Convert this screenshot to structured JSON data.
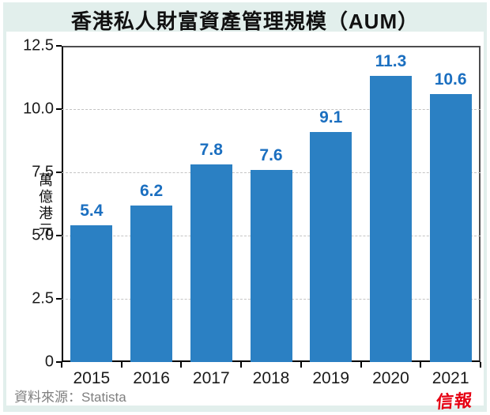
{
  "page": {
    "title": "香港私人財富資產管理規模（AUM）",
    "source_label": "資料來源：Statista",
    "logo_text": "信報",
    "background_color": "#e2efec",
    "card_color": "#ffffff"
  },
  "chart_data": {
    "type": "bar",
    "title": "香港私人財富資產管理規模（AUM）",
    "categories": [
      "2015",
      "2016",
      "2017",
      "2018",
      "2019",
      "2020",
      "2021"
    ],
    "values": [
      5.4,
      6.2,
      7.8,
      7.6,
      9.1,
      11.3,
      10.6
    ],
    "value_labels": [
      "5.4",
      "6.2",
      "7.8",
      "7.6",
      "9.1",
      "11.3",
      "10.6"
    ],
    "xlabel": "",
    "ylabel": "萬億港元",
    "ylim": [
      0,
      12.5
    ],
    "ytick_values": [
      0,
      2.5,
      5,
      7.5,
      10,
      12.5
    ],
    "ytick_labels": [
      "0",
      "2.5",
      "5.0",
      "7.5",
      "10.0",
      "12.5"
    ],
    "grid": "dashed horizontal at 2.5, 5.0, 7.5, 10.0",
    "legend": "none",
    "bar_color": "#2b80c3",
    "value_label_color": "#1b6fc0",
    "source": "資料來源：Statista"
  }
}
